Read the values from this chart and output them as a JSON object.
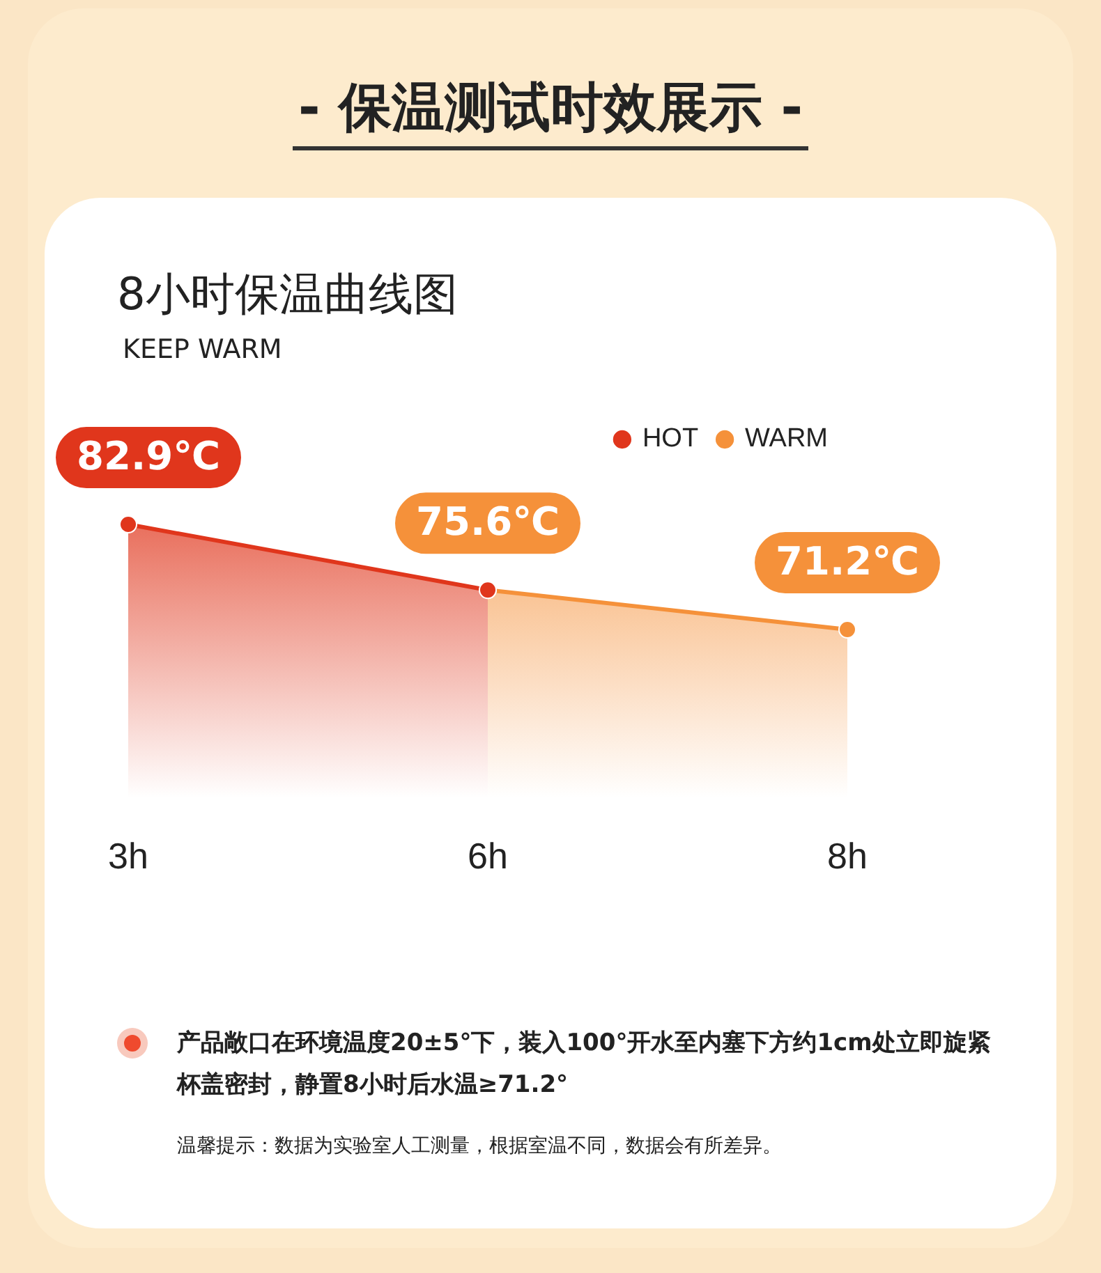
{
  "chart_data": {
    "type": "area",
    "title": "8小时保温曲线图",
    "subtitle": "KEEP WARM",
    "categories": [
      "3h",
      "6h",
      "8h"
    ],
    "series": [
      {
        "name": "HOT",
        "color": "#e0361c",
        "values": [
          82.9,
          75.6,
          null
        ],
        "value_labels": [
          "82.9℃",
          null,
          null
        ]
      },
      {
        "name": "WARM",
        "color": "#f5913a",
        "values": [
          null,
          75.6,
          71.2
        ],
        "value_labels": [
          null,
          "75.6℃",
          "71.2℃"
        ]
      }
    ],
    "legend": "top right",
    "grid": false,
    "marker": "circle",
    "annotations": [
      "- 保温测试时效展示 -",
      "产品敞口在环境温度20±5°下，装入100°开水至内塞下方约1cm处立即旋紧杯盖密封，静置8小时后水温≥71.2°",
      "温馨提示：数据为实验室人工测量，根据室温不同，数据会有所差异。"
    ]
  }
}
